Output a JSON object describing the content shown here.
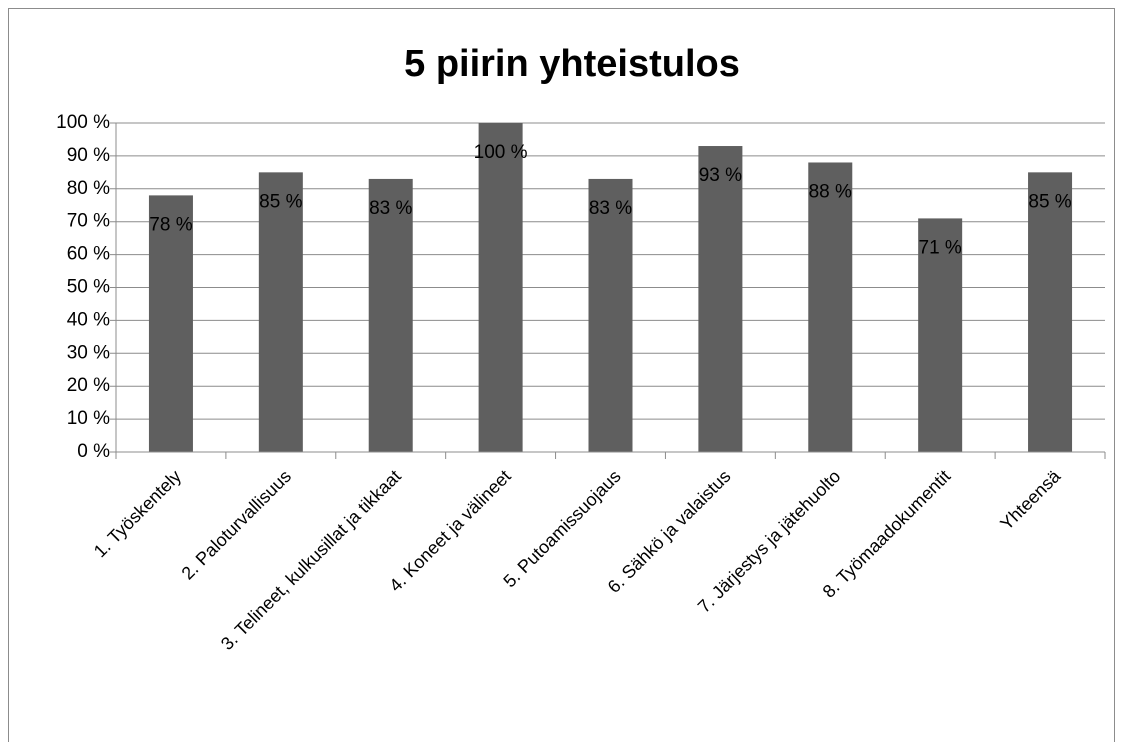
{
  "chart_data": {
    "type": "bar",
    "title": "5 piirin yhteistulos",
    "categories": [
      "1. Työskentely",
      "2. Paloturvallisuus",
      "3. Telineet, kulkusillat ja tikkaat",
      "4. Koneet ja välineet",
      "5. Putoamissuojaus",
      "6. Sähkö ja valaistus",
      "7. Järjestys ja jätehuolto",
      "8. Työmaadokumentit",
      "Yhteensä"
    ],
    "values": [
      78,
      85,
      83,
      100,
      83,
      93,
      88,
      71,
      85
    ],
    "value_labels": [
      "78 %",
      "85 %",
      "83 %",
      "100 %",
      "83 %",
      "93 %",
      "88 %",
      "71 %",
      "85 %"
    ],
    "color": "#5f5f5f",
    "ylim": [
      0,
      100
    ],
    "yticks": [
      {
        "value": 0,
        "label": "0 %"
      },
      {
        "value": 10,
        "label": "10 %"
      },
      {
        "value": 20,
        "label": "20 %"
      },
      {
        "value": 30,
        "label": "30 %"
      },
      {
        "value": 40,
        "label": "40 %"
      },
      {
        "value": 50,
        "label": "50 %"
      },
      {
        "value": 60,
        "label": "60 %"
      },
      {
        "value": 70,
        "label": "70 %"
      },
      {
        "value": 80,
        "label": "80 %"
      },
      {
        "value": 90,
        "label": "90 %"
      },
      {
        "value": 100,
        "label": "100 %"
      }
    ],
    "grid": true
  }
}
